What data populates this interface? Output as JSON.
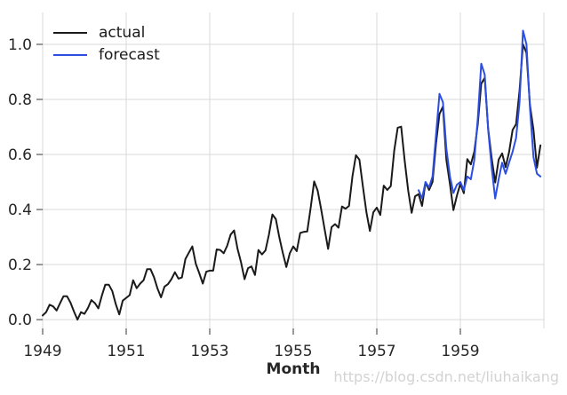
{
  "watermark": {
    "text": "https://blog.csdn.net/liuhaikang"
  },
  "colors": {
    "background": "#ffffff",
    "grid": "#d9d9d9",
    "tick": "#555555",
    "axis_text": "#262626",
    "actual_line": "#1a1a1a",
    "forecast_line": "#2d4fe1",
    "watermark": "#d3d3d3"
  },
  "legend": {
    "position": "upper-left",
    "frame": false
  },
  "chart_data": {
    "type": "line",
    "title": "",
    "xlabel": "Month",
    "ylabel": "",
    "grid": true,
    "xlim": [
      1949,
      1961
    ],
    "ylim": [
      -0.032,
      1.116
    ],
    "x_tick_labels": [
      "1949",
      "1951",
      "1953",
      "1955",
      "1957",
      "1959"
    ],
    "x_tick_values": [
      1949,
      1951,
      1953,
      1955,
      1957,
      1959
    ],
    "x_grid_values": [
      1949,
      1951,
      1953,
      1955,
      1957,
      1959,
      1961
    ],
    "y_tick_labels": [
      "0.0",
      "0.2",
      "0.4",
      "0.6",
      "0.8",
      "1.0"
    ],
    "y_tick_values": [
      0.0,
      0.2,
      0.4,
      0.6,
      0.8,
      1.0
    ],
    "series": [
      {
        "name": "actual",
        "color": "#1a1a1a",
        "start_year": 1949,
        "points_per_year": 12,
        "values": [
          0.015,
          0.027,
          0.054,
          0.048,
          0.033,
          0.06,
          0.085,
          0.085,
          0.062,
          0.029,
          0.0,
          0.027,
          0.021,
          0.042,
          0.071,
          0.06,
          0.041,
          0.087,
          0.127,
          0.127,
          0.104,
          0.056,
          0.019,
          0.069,
          0.079,
          0.089,
          0.143,
          0.114,
          0.131,
          0.143,
          0.183,
          0.183,
          0.154,
          0.112,
          0.081,
          0.12,
          0.129,
          0.147,
          0.172,
          0.149,
          0.153,
          0.22,
          0.243,
          0.266,
          0.203,
          0.168,
          0.131,
          0.174,
          0.178,
          0.178,
          0.255,
          0.253,
          0.241,
          0.268,
          0.309,
          0.324,
          0.257,
          0.207,
          0.147,
          0.187,
          0.193,
          0.162,
          0.253,
          0.237,
          0.251,
          0.309,
          0.382,
          0.365,
          0.299,
          0.241,
          0.191,
          0.241,
          0.266,
          0.249,
          0.315,
          0.319,
          0.32,
          0.407,
          0.502,
          0.469,
          0.402,
          0.328,
          0.257,
          0.336,
          0.347,
          0.334,
          0.411,
          0.403,
          0.413,
          0.521,
          0.597,
          0.581,
          0.485,
          0.39,
          0.322,
          0.39,
          0.407,
          0.38,
          0.487,
          0.471,
          0.485,
          0.614,
          0.697,
          0.701,
          0.579,
          0.469,
          0.388,
          0.448,
          0.456,
          0.413,
          0.498,
          0.471,
          0.5,
          0.639,
          0.747,
          0.774,
          0.579,
          0.492,
          0.398,
          0.45,
          0.494,
          0.459,
          0.583,
          0.564,
          0.61,
          0.71,
          0.857,
          0.878,
          0.693,
          0.585,
          0.498,
          0.581,
          0.604,
          0.554,
          0.608,
          0.689,
          0.71,
          0.832,
          1.0,
          0.969,
          0.78,
          0.689,
          0.552,
          0.633
        ]
      },
      {
        "name": "forecast",
        "color": "#2d4fe1",
        "start_year": 1958,
        "points_per_year": 12,
        "values": [
          0.47,
          0.44,
          0.5,
          0.48,
          0.52,
          0.67,
          0.82,
          0.79,
          0.62,
          0.52,
          0.46,
          0.49,
          0.5,
          0.47,
          0.52,
          0.51,
          0.58,
          0.73,
          0.93,
          0.89,
          0.69,
          0.55,
          0.44,
          0.51,
          0.57,
          0.53,
          0.57,
          0.61,
          0.66,
          0.79,
          1.05,
          1.0,
          0.77,
          0.59,
          0.53,
          0.52
        ]
      }
    ]
  }
}
